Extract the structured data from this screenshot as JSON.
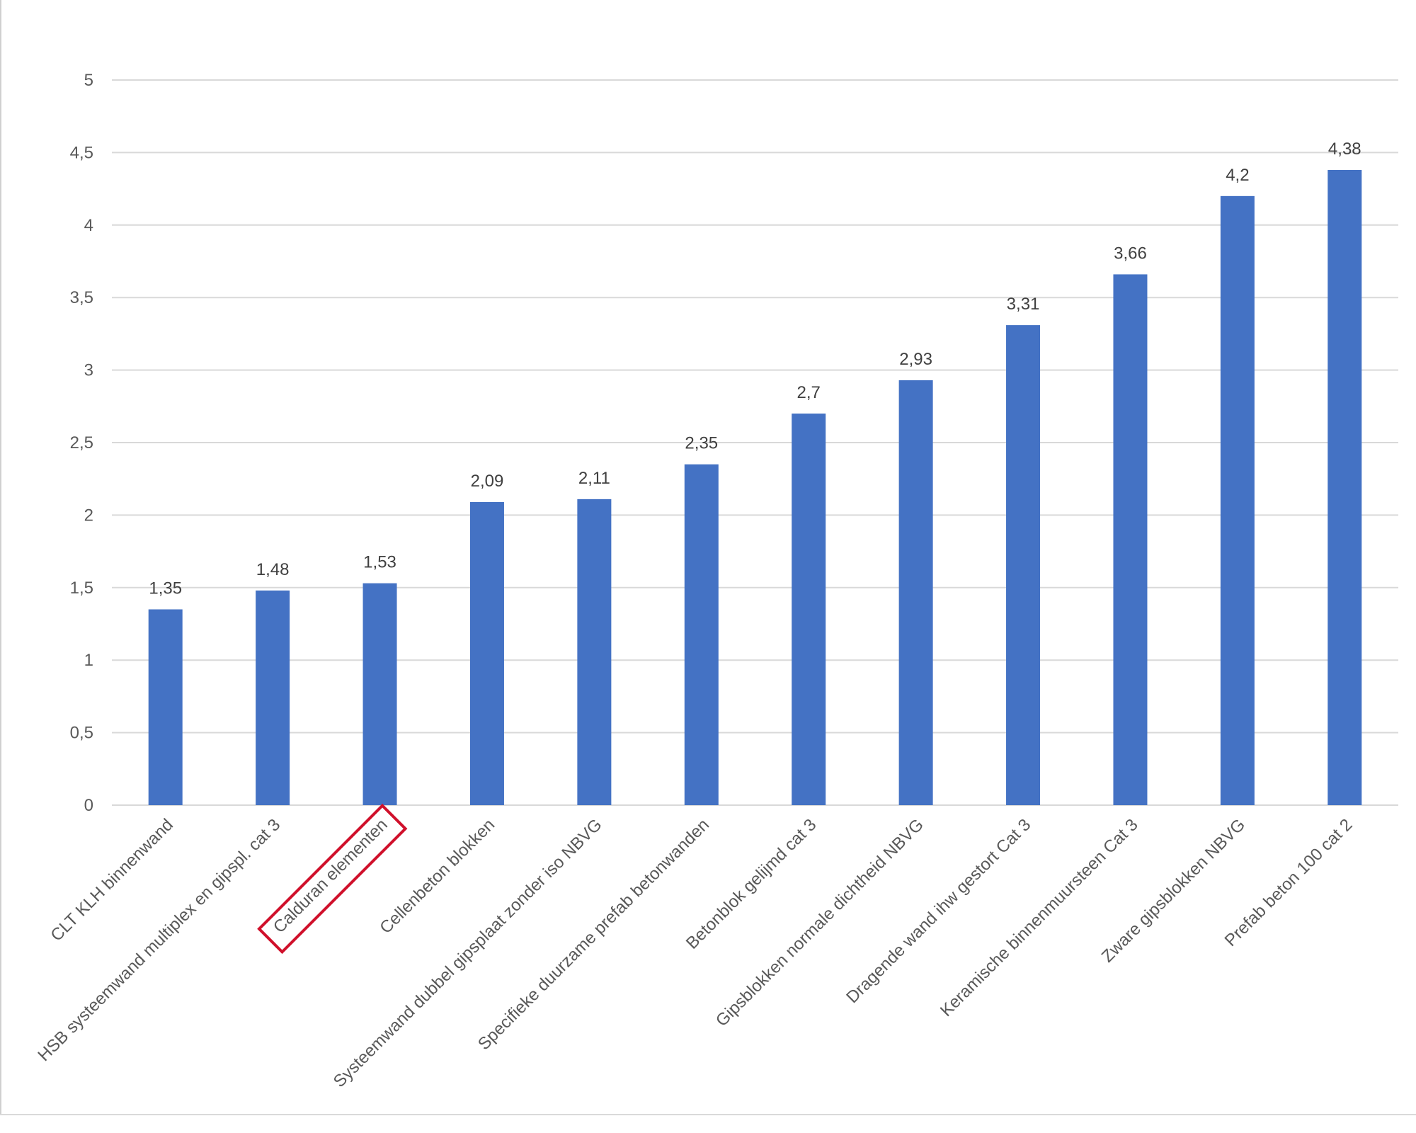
{
  "chart_data": {
    "type": "bar",
    "title": "",
    "xlabel": "",
    "ylabel": "",
    "ylim": [
      0,
      5
    ],
    "yticks": [
      "0",
      "0,5",
      "1",
      "1,5",
      "2",
      "2,5",
      "3",
      "3,5",
      "4",
      "4,5",
      "5"
    ],
    "grid": true,
    "legend": "none",
    "categories": [
      "CLT KLH binnenwand",
      "HSB  systeemwand multiplex en gipspl. cat 3",
      "Calduran elementen",
      "Cellenbeton blokken",
      "Systeemwand dubbel gipsplaat zonder iso NBVG",
      "Specifieke duurzame prefab betonwanden",
      "Betonblok gelijmd cat 3",
      "Gipsblokken normale dichtheid NBVG",
      "Dragende wand ihw gestort Cat 3",
      "Keramische binnenmuursteen Cat 3",
      "Zware gipsblokken NBVG",
      "Prefab beton 100 cat 2"
    ],
    "values": [
      1.35,
      1.48,
      1.53,
      2.09,
      2.11,
      2.35,
      2.7,
      2.93,
      3.31,
      3.66,
      4.2,
      4.38
    ],
    "data_labels": [
      "1,35",
      "1,48",
      "1,53",
      "2,09",
      "2,11",
      "2,35",
      "2,7",
      "2,93",
      "3,31",
      "3,66",
      "4,2",
      "4,38"
    ],
    "highlighted_category": "Calduran elementen",
    "colors": {
      "bar": "#4472C4",
      "grid": "#D9D9D9",
      "highlight_box": "#D0102B"
    }
  }
}
